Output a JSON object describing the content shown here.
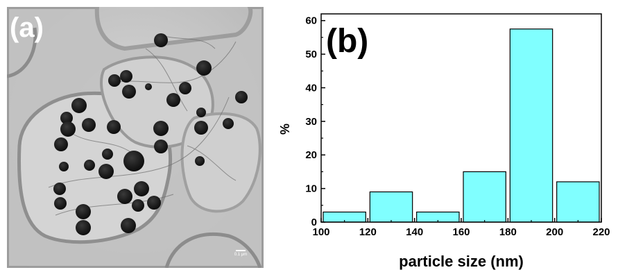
{
  "panel_a": {
    "label": "(a)",
    "scalebar_text": "0.1 μm"
  },
  "panel_b": {
    "label": "(b)"
  },
  "chart_data": {
    "type": "bar",
    "title": "",
    "xlabel": "particle size (nm)",
    "ylabel": "%",
    "bins": [
      [
        100,
        120
      ],
      [
        120,
        140
      ],
      [
        140,
        160
      ],
      [
        160,
        180
      ],
      [
        180,
        200
      ],
      [
        200,
        220
      ]
    ],
    "values": [
      3,
      9,
      3,
      15,
      57.5,
      12
    ],
    "xlim": [
      100,
      220
    ],
    "ylim": [
      0,
      62
    ],
    "xticks": [
      100,
      120,
      140,
      160,
      180,
      200,
      220
    ],
    "yticks": [
      0,
      10,
      20,
      30,
      40,
      50,
      60
    ],
    "bar_color": "#80ffff",
    "grid": false
  }
}
